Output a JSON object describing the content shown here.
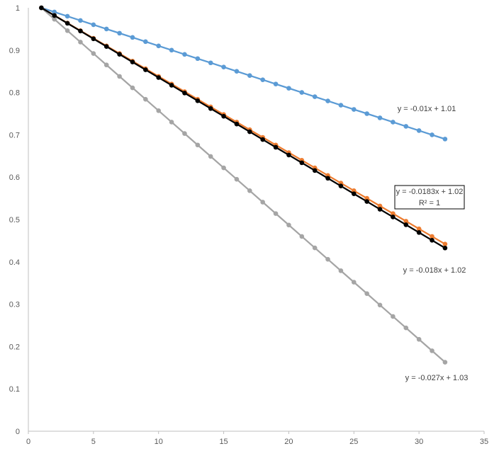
{
  "chart_data": {
    "type": "scatter",
    "title": "",
    "xlabel": "",
    "ylabel": "",
    "xlim": [
      0,
      35
    ],
    "ylim": [
      0,
      1
    ],
    "x_ticks": [
      "0",
      "5",
      "10",
      "15",
      "20",
      "25",
      "30",
      "35"
    ],
    "y_ticks": [
      "0",
      "0.1",
      "0.2",
      "0.3",
      "0.4",
      "0.5",
      "0.6",
      "0.7",
      "0.8",
      "0.9",
      "1"
    ],
    "grid": false,
    "legend": "none",
    "x": [
      1,
      2,
      3,
      4,
      5,
      6,
      7,
      8,
      9,
      10,
      11,
      12,
      13,
      14,
      15,
      16,
      17,
      18,
      19,
      20,
      21,
      22,
      23,
      24,
      25,
      26,
      27,
      28,
      29,
      30,
      31,
      32
    ],
    "series": [
      {
        "color": "#5B9BD5",
        "values": [
          1.0,
          0.99,
          0.98,
          0.97,
          0.96,
          0.95,
          0.94,
          0.93,
          0.92,
          0.91,
          0.9,
          0.89,
          0.88,
          0.87,
          0.86,
          0.85,
          0.84,
          0.83,
          0.82,
          0.81,
          0.8,
          0.79,
          0.78,
          0.77,
          0.76,
          0.75,
          0.74,
          0.73,
          0.72,
          0.71,
          0.7,
          0.69
        ],
        "trendline_label": "y = -0.01x + 1.01",
        "trendline_boxed": false
      },
      {
        "color": "#ED7D31",
        "values": [
          1.0,
          0.982,
          0.964,
          0.946,
          0.928,
          0.91,
          0.892,
          0.874,
          0.856,
          0.838,
          0.82,
          0.802,
          0.784,
          0.766,
          0.748,
          0.73,
          0.712,
          0.694,
          0.676,
          0.658,
          0.64,
          0.622,
          0.604,
          0.586,
          0.568,
          0.55,
          0.532,
          0.514,
          0.496,
          0.478,
          0.46,
          0.442
        ],
        "trendline_label": "y = -0.018x + 1.02",
        "trendline_boxed": false
      },
      {
        "color": "#A5A5A5",
        "values": [
          1.0,
          0.973,
          0.946,
          0.919,
          0.892,
          0.865,
          0.838,
          0.811,
          0.784,
          0.757,
          0.73,
          0.703,
          0.676,
          0.649,
          0.622,
          0.595,
          0.568,
          0.541,
          0.514,
          0.487,
          0.46,
          0.433,
          0.406,
          0.379,
          0.352,
          0.325,
          0.298,
          0.271,
          0.244,
          0.217,
          0.19,
          0.163
        ],
        "trendline_label": "y = -0.027x + 1.03",
        "trendline_boxed": false
      },
      {
        "color": "#000000",
        "values": [
          1.0,
          0.9817,
          0.9634,
          0.9451,
          0.9268,
          0.9085,
          0.8902,
          0.8719,
          0.8536,
          0.8353,
          0.817,
          0.7987,
          0.7804,
          0.7621,
          0.7438,
          0.7255,
          0.7072,
          0.6889,
          0.6706,
          0.6523,
          0.634,
          0.6157,
          0.5974,
          0.5791,
          0.5608,
          0.5425,
          0.5242,
          0.5059,
          0.4876,
          0.4693,
          0.451,
          0.4327
        ],
        "trendline_label": "y = -0.0183x + 1.02",
        "trendline_label_2": "R² = 1",
        "trendline_boxed": true
      }
    ]
  }
}
